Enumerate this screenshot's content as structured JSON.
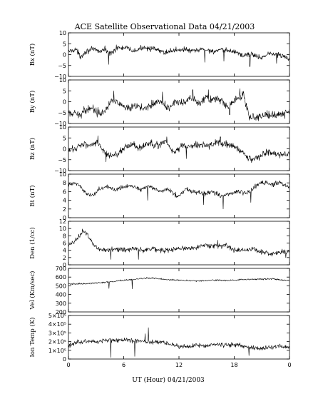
{
  "title": "ACE Satellite Observational Data   04/21/2003",
  "chart_data": {
    "type": "line",
    "title": "ACE Satellite Observational Data   04/21/2003",
    "xlabel": "UT (Hour)   04/21/2003",
    "x_ticks": [
      "0",
      "6",
      "12",
      "18",
      "0"
    ],
    "x_range": [
      0,
      24
    ],
    "panels": [
      {
        "key": "bx",
        "ylabel": "Bx (nT)",
        "ylim": [
          -10,
          10
        ],
        "yticks": [
          {
            "v": 10,
            "label": "10"
          },
          {
            "v": 5,
            "label": "5"
          },
          {
            "v": 0,
            "label": "0"
          },
          {
            "v": -5,
            "label": "−5"
          },
          {
            "v": -10,
            "label": "−10"
          }
        ],
        "knots": [
          [
            0,
            1.5
          ],
          [
            0.8,
            2.5
          ],
          [
            1.3,
            -1
          ],
          [
            1.9,
            1.5
          ],
          [
            2.7,
            2.5
          ],
          [
            3.4,
            1.5
          ],
          [
            4.0,
            2.5
          ],
          [
            4.5,
            0.5
          ],
          [
            5.3,
            3
          ],
          [
            6.3,
            3
          ],
          [
            7.2,
            1.5
          ],
          [
            8.2,
            3.5
          ],
          [
            9.3,
            2.5
          ],
          [
            10.4,
            1
          ],
          [
            11.5,
            2
          ],
          [
            12.5,
            2.5
          ],
          [
            13.5,
            1.5
          ],
          [
            14.6,
            2.5
          ],
          [
            15.7,
            1.5
          ],
          [
            16.8,
            2
          ],
          [
            18.0,
            1.5
          ],
          [
            19.0,
            -0.5
          ],
          [
            19.8,
            0.5
          ],
          [
            20.8,
            -1.5
          ],
          [
            21.8,
            0.5
          ],
          [
            22.8,
            0
          ],
          [
            24,
            -2
          ]
        ],
        "noise": 1.2,
        "spikes": [
          [
            4.35,
            -4.5
          ],
          [
            5.2,
            4.5
          ],
          [
            14.8,
            -3.5
          ],
          [
            16.9,
            -3
          ],
          [
            19.7,
            -5.5
          ],
          [
            22.6,
            -4
          ]
        ]
      },
      {
        "key": "by",
        "ylabel": "By (nT)",
        "ylim": [
          -10,
          10
        ],
        "yticks": [
          {
            "v": 10,
            "label": "10"
          },
          {
            "v": 5,
            "label": "5"
          },
          {
            "v": 0,
            "label": "0"
          },
          {
            "v": -5,
            "label": "−5"
          },
          {
            "v": -10,
            "label": "−10"
          }
        ],
        "knots": [
          [
            0,
            -5.5
          ],
          [
            1.2,
            -6
          ],
          [
            1.8,
            -4
          ],
          [
            2.5,
            -2.5
          ],
          [
            3.2,
            -5
          ],
          [
            4.0,
            -4
          ],
          [
            4.8,
            1.5
          ],
          [
            5.7,
            -2
          ],
          [
            6.6,
            -3.5
          ],
          [
            7.4,
            -2
          ],
          [
            8.2,
            -3
          ],
          [
            9.1,
            -1
          ],
          [
            10.0,
            0.5
          ],
          [
            10.7,
            -3
          ],
          [
            11.6,
            0
          ],
          [
            12.4,
            -1
          ],
          [
            13.3,
            1.5
          ],
          [
            14.2,
            -1
          ],
          [
            15.0,
            2
          ],
          [
            15.8,
            1
          ],
          [
            16.6,
            0.5
          ],
          [
            17.3,
            -2.5
          ],
          [
            18.1,
            1
          ],
          [
            19.0,
            3
          ],
          [
            19.6,
            -6.5
          ],
          [
            20.6,
            -7
          ],
          [
            21.5,
            -6
          ],
          [
            22.5,
            -6
          ],
          [
            24,
            -5
          ]
        ],
        "noise": 1.8,
        "spikes": [
          [
            4.9,
            5
          ],
          [
            10.2,
            4.5
          ],
          [
            13.5,
            5.5
          ],
          [
            15.2,
            5.5
          ],
          [
            17.5,
            -6
          ],
          [
            18.6,
            6
          ]
        ]
      },
      {
        "key": "bz",
        "ylabel": "Bz (nT)",
        "ylim": [
          -10,
          10
        ],
        "yticks": [
          {
            "v": 10,
            "label": "10"
          },
          {
            "v": 5,
            "label": "5"
          },
          {
            "v": 0,
            "label": "0"
          },
          {
            "v": -5,
            "label": "−5"
          },
          {
            "v": -10,
            "label": "−10"
          }
        ],
        "knots": [
          [
            0,
            -1
          ],
          [
            0.9,
            0.5
          ],
          [
            1.5,
            2.5
          ],
          [
            2.4,
            1.5
          ],
          [
            3.1,
            3.5
          ],
          [
            3.8,
            -1.5
          ],
          [
            4.6,
            -3
          ],
          [
            5.4,
            -2
          ],
          [
            6.2,
            1
          ],
          [
            7.0,
            2
          ],
          [
            7.8,
            0
          ],
          [
            8.6,
            2.5
          ],
          [
            9.6,
            1.5
          ],
          [
            10.6,
            3
          ],
          [
            11.5,
            -2
          ],
          [
            12.3,
            1.5
          ],
          [
            13.2,
            1
          ],
          [
            14.2,
            2
          ],
          [
            15.2,
            1.5
          ],
          [
            16.3,
            3
          ],
          [
            17.2,
            2
          ],
          [
            18.0,
            1
          ],
          [
            18.8,
            -1.5
          ],
          [
            19.8,
            -5
          ],
          [
            20.6,
            -4
          ],
          [
            21.5,
            -1.5
          ],
          [
            22.5,
            -2.5
          ],
          [
            24,
            -2.5
          ]
        ],
        "noise": 1.6,
        "spikes": [
          [
            3.2,
            6
          ],
          [
            4.1,
            -6
          ],
          [
            10.7,
            5.5
          ],
          [
            12.8,
            -4.5
          ],
          [
            16.5,
            5.5
          ]
        ]
      },
      {
        "key": "bt",
        "ylabel": "Bt (nT)",
        "ylim": [
          0,
          10
        ],
        "yticks": [
          {
            "v": 10,
            "label": "10"
          },
          {
            "v": 8,
            "label": "8"
          },
          {
            "v": 6,
            "label": "6"
          },
          {
            "v": 4,
            "label": "4"
          },
          {
            "v": 2,
            "label": "2"
          },
          {
            "v": 0,
            "label": "0"
          }
        ],
        "knots": [
          [
            0,
            7.5
          ],
          [
            1.0,
            8
          ],
          [
            1.7,
            6
          ],
          [
            2.5,
            5
          ],
          [
            3.3,
            6.5
          ],
          [
            4.2,
            7
          ],
          [
            5.0,
            6.5
          ],
          [
            5.8,
            7
          ],
          [
            6.8,
            7.5
          ],
          [
            7.8,
            6.5
          ],
          [
            8.8,
            7.2
          ],
          [
            9.8,
            6
          ],
          [
            10.8,
            6.5
          ],
          [
            11.8,
            5
          ],
          [
            12.8,
            6.5
          ],
          [
            13.8,
            6
          ],
          [
            14.8,
            5.5
          ],
          [
            15.6,
            6
          ],
          [
            16.6,
            5
          ],
          [
            17.6,
            5.5
          ],
          [
            18.6,
            6
          ],
          [
            19.4,
            5.5
          ],
          [
            20.2,
            7
          ],
          [
            21.0,
            8.2
          ],
          [
            22.0,
            7.5
          ],
          [
            23.0,
            8
          ],
          [
            24,
            7
          ]
        ],
        "noise": 0.55,
        "spikes": [
          [
            3.5,
            4
          ],
          [
            8.6,
            4
          ],
          [
            14.7,
            3
          ],
          [
            16.8,
            2
          ],
          [
            19.8,
            3.5
          ]
        ]
      },
      {
        "key": "den",
        "ylabel": "Den (1/cc)",
        "ylim": [
          0,
          12
        ],
        "yticks": [
          {
            "v": 12,
            "label": "12"
          },
          {
            "v": 10,
            "label": "10"
          },
          {
            "v": 8,
            "label": "8"
          },
          {
            "v": 6,
            "label": "6"
          },
          {
            "v": 4,
            "label": "4"
          },
          {
            "v": 2,
            "label": "2"
          },
          {
            "v": 0,
            "label": "0"
          }
        ],
        "knots": [
          [
            0,
            5
          ],
          [
            0.6,
            6.5
          ],
          [
            1.2,
            8
          ],
          [
            1.6,
            9.5
          ],
          [
            2.1,
            8
          ],
          [
            2.6,
            6
          ],
          [
            3.2,
            4.5
          ],
          [
            4.0,
            4
          ],
          [
            5.0,
            4.5
          ],
          [
            6.0,
            4
          ],
          [
            7.0,
            4.5
          ],
          [
            8.0,
            4
          ],
          [
            9.0,
            4.5
          ],
          [
            10.0,
            4
          ],
          [
            11.0,
            4
          ],
          [
            12.0,
            4.5
          ],
          [
            13.0,
            4.5
          ],
          [
            14.0,
            5
          ],
          [
            15.0,
            5.5
          ],
          [
            16.0,
            5
          ],
          [
            17.0,
            5.5
          ],
          [
            18.0,
            4
          ],
          [
            19.0,
            4
          ],
          [
            20.0,
            4.5
          ],
          [
            21.0,
            3.5
          ],
          [
            22.0,
            3
          ],
          [
            23.0,
            3.5
          ],
          [
            24,
            3.5
          ]
        ],
        "noise": 0.7,
        "spikes": [
          [
            4.6,
            1.5
          ],
          [
            7.6,
            1.5
          ],
          [
            16.2,
            6.8
          ],
          [
            23.6,
            2
          ]
        ]
      },
      {
        "key": "vel",
        "ylabel": "Vel (Km/sec)",
        "ylim": [
          200,
          700
        ],
        "yticks": [
          {
            "v": 700,
            "label": "700"
          },
          {
            "v": 600,
            "label": "600"
          },
          {
            "v": 500,
            "label": "500"
          },
          {
            "v": 400,
            "label": "400"
          },
          {
            "v": 300,
            "label": "300"
          },
          {
            "v": 200,
            "label": "200"
          }
        ],
        "knots": [
          [
            0,
            520
          ],
          [
            2.0,
            525
          ],
          [
            4.0,
            540
          ],
          [
            5.0,
            550
          ],
          [
            6.0,
            565
          ],
          [
            7.0,
            570
          ],
          [
            8.0,
            585
          ],
          [
            9.0,
            590
          ],
          [
            10.0,
            580
          ],
          [
            11.0,
            570
          ],
          [
            12.0,
            565
          ],
          [
            13.0,
            560
          ],
          [
            14.0,
            555
          ],
          [
            15.0,
            560
          ],
          [
            16.0,
            565
          ],
          [
            17.0,
            560
          ],
          [
            18.0,
            565
          ],
          [
            19.0,
            570
          ],
          [
            20.0,
            575
          ],
          [
            21.0,
            575
          ],
          [
            22.0,
            580
          ],
          [
            23.0,
            570
          ],
          [
            24,
            560
          ]
        ],
        "noise": 8,
        "spikes": [
          [
            4.4,
            470
          ],
          [
            6.9,
            465
          ]
        ]
      },
      {
        "key": "temp",
        "ylabel": "Ion Temp (K)",
        "ylim": [
          0,
          500000
        ],
        "yticks": [
          {
            "v": 500000,
            "label": "5×10⁵"
          },
          {
            "v": 400000,
            "label": "4×10⁵"
          },
          {
            "v": 300000,
            "label": "3×10⁵"
          },
          {
            "v": 200000,
            "label": "2×10⁵"
          },
          {
            "v": 100000,
            "label": "1×10⁵"
          },
          {
            "v": 0,
            "label": "0"
          }
        ],
        "knots": [
          [
            0,
            150000
          ],
          [
            1.0,
            190000
          ],
          [
            2.0,
            210000
          ],
          [
            3.0,
            200000
          ],
          [
            4.0,
            220000
          ],
          [
            5.0,
            210000
          ],
          [
            6.0,
            220000
          ],
          [
            7.0,
            210000
          ],
          [
            8.0,
            200000
          ],
          [
            9.0,
            190000
          ],
          [
            10.0,
            200000
          ],
          [
            11.0,
            170000
          ],
          [
            12.0,
            150000
          ],
          [
            13.0,
            140000
          ],
          [
            14.0,
            160000
          ],
          [
            15.0,
            150000
          ],
          [
            16.0,
            170000
          ],
          [
            17.0,
            160000
          ],
          [
            18.0,
            170000
          ],
          [
            19.0,
            150000
          ],
          [
            20.0,
            130000
          ],
          [
            21.0,
            120000
          ],
          [
            22.0,
            140000
          ],
          [
            23.0,
            150000
          ],
          [
            24,
            130000
          ]
        ],
        "noise": 25000,
        "spikes": [
          [
            8.7,
            360000
          ],
          [
            8.3,
            290000
          ],
          [
            4.6,
            20000
          ],
          [
            7.2,
            30000
          ],
          [
            19.6,
            40000
          ]
        ]
      }
    ]
  }
}
